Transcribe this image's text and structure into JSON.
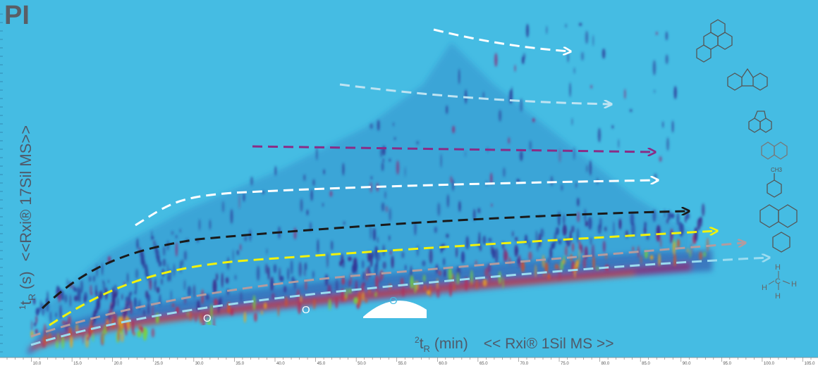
{
  "panel_label": "PI",
  "colors": {
    "background": "#45bce3",
    "bar": "#ffffff",
    "trend_white": "#ffffff",
    "trend_lightblue": "#bde3f2",
    "trend_purple": "#8a2d86",
    "trend_black": "#1a1a1a",
    "trend_yellow": "#f2f20a",
    "trend_grey": "#b39b9f",
    "trend_cyan": "#9bdcf0"
  },
  "chart_data": {
    "type": "heatmap",
    "title": "PI",
    "xlabel_prefix": "2",
    "xlabel_main": "t",
    "xlabel_sub": "R",
    "xlabel_unit": "(min)",
    "xlabel_column": "<< Rxi® 1Sil MS >>",
    "ylabel_prefix": "1",
    "ylabel_main": "t",
    "ylabel_sub": "R",
    "ylabel_unit": "(s)",
    "ylabel_column": "<<Rxi® 17Sil MS>>",
    "x_ticks": [
      "10.0",
      "15.0",
      "20.0",
      "25.0",
      "30.0",
      "35.0",
      "40.0",
      "45.0",
      "50.0",
      "55.0",
      "60.0",
      "65.0",
      "70.0",
      "75.0",
      "80.0",
      "85.0",
      "90.0",
      "95.0",
      "100.0",
      "105.0"
    ],
    "xlim": [
      7,
      106
    ],
    "annotations": [
      "O",
      "O",
      "O"
    ],
    "trend_lines": [
      {
        "class": "pyrene",
        "color": "#ffffff"
      },
      {
        "class": "fluorene",
        "color": "#bde3f2"
      },
      {
        "class": "acenaphthene",
        "color": "#8a2d86"
      },
      {
        "class": "naphthalene",
        "color": "#ffffff"
      },
      {
        "class": "toluene",
        "color": "#1a1a1a"
      },
      {
        "class": "decalin",
        "color": "#f2f20a"
      },
      {
        "class": "cyclohexane",
        "color": "#b39b9f"
      },
      {
        "class": "methane",
        "color": "#9bdcf0"
      }
    ],
    "structures": [
      {
        "name": "pyrene"
      },
      {
        "name": "fluorene"
      },
      {
        "name": "acenaphthene"
      },
      {
        "name": "naphthalene"
      },
      {
        "name": "toluene",
        "label": "CH3"
      },
      {
        "name": "decalin"
      },
      {
        "name": "cyclohexane"
      },
      {
        "name": "methane",
        "labels": [
          "H",
          "H",
          "C",
          "H",
          "H"
        ]
      }
    ],
    "grid": false
  }
}
